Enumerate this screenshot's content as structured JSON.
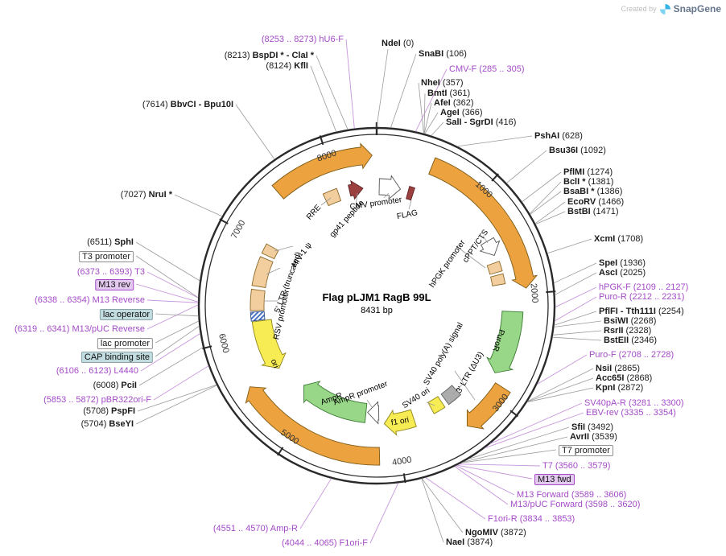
{
  "watermark": {
    "created_by": "Created by",
    "brand": "SnapGene"
  },
  "plasmid": {
    "name": "Flag pLJM1 RagB 99L",
    "length": "8431 bp"
  },
  "ticks": [
    "1000",
    "2000",
    "3000",
    "4000",
    "5000",
    "6000",
    "7000",
    "8000"
  ],
  "colors": {
    "backbone": "#2a2a2a",
    "primer_purple": "#A44BC8",
    "orange": "#ECA33F",
    "green": "#97D787",
    "yellow": "#F7EC54",
    "tan": "#F2CE9E",
    "gray_feature": "#ACACAC",
    "maroon": "#9C3F3F",
    "highlight_purple_bg": "#E3C8EF",
    "highlight_teal_bg": "#C2DCE0"
  },
  "labels": [
    {
      "id": "ndei",
      "kind": "enzyme",
      "parts": [
        {
          "t": "NdeI",
          "b": 1
        },
        {
          "t": " (0)"
        }
      ]
    },
    {
      "id": "snabi",
      "kind": "enzyme",
      "parts": [
        {
          "t": "SnaBI",
          "b": 1
        },
        {
          "t": " (106)"
        }
      ]
    },
    {
      "id": "cmvf",
      "kind": "primer",
      "parts": [
        {
          "t": "CMV-F (285 .. 305)"
        }
      ]
    },
    {
      "id": "nhei",
      "kind": "enzyme",
      "parts": [
        {
          "t": "NheI",
          "b": 1
        },
        {
          "t": " (357)"
        }
      ]
    },
    {
      "id": "bmti",
      "kind": "enzyme",
      "parts": [
        {
          "t": "BmtI",
          "b": 1
        },
        {
          "t": " (361)"
        }
      ]
    },
    {
      "id": "afei",
      "kind": "enzyme",
      "parts": [
        {
          "t": "AfeI",
          "b": 1
        },
        {
          "t": " (362)"
        }
      ]
    },
    {
      "id": "agei",
      "kind": "enzyme",
      "parts": [
        {
          "t": "AgeI",
          "b": 1
        },
        {
          "t": " (366)"
        }
      ]
    },
    {
      "id": "sali",
      "kind": "enzyme",
      "parts": [
        {
          "t": "SalI - SgrDI",
          "b": 1
        },
        {
          "t": " (416)"
        }
      ]
    },
    {
      "id": "pshai",
      "kind": "enzyme",
      "parts": [
        {
          "t": "PshAI",
          "b": 1
        },
        {
          "t": " (628)"
        }
      ]
    },
    {
      "id": "bsu36i",
      "kind": "enzyme",
      "parts": [
        {
          "t": "Bsu36I",
          "b": 1
        },
        {
          "t": " (1092)"
        }
      ]
    },
    {
      "id": "pflmi",
      "kind": "enzyme",
      "parts": [
        {
          "t": "PflMI",
          "b": 1
        },
        {
          "t": " (1274)"
        }
      ]
    },
    {
      "id": "bcli",
      "kind": "enzyme",
      "parts": [
        {
          "t": "BclI *",
          "b": 1
        },
        {
          "t": " (1381)"
        }
      ]
    },
    {
      "id": "bsabi",
      "kind": "enzyme",
      "parts": [
        {
          "t": "BsaBI *",
          "b": 1
        },
        {
          "t": " (1386)"
        }
      ]
    },
    {
      "id": "ecorv",
      "kind": "enzyme",
      "parts": [
        {
          "t": "EcoRV",
          "b": 1
        },
        {
          "t": " (1466)"
        }
      ]
    },
    {
      "id": "bstbi",
      "kind": "enzyme",
      "parts": [
        {
          "t": "BstBI",
          "b": 1
        },
        {
          "t": " (1471)"
        }
      ]
    },
    {
      "id": "xcmi",
      "kind": "enzyme",
      "parts": [
        {
          "t": "XcmI",
          "b": 1
        },
        {
          "t": " (1708)"
        }
      ]
    },
    {
      "id": "spei",
      "kind": "enzyme",
      "parts": [
        {
          "t": "SpeI",
          "b": 1
        },
        {
          "t": " (1936)"
        }
      ]
    },
    {
      "id": "asci",
      "kind": "enzyme",
      "parts": [
        {
          "t": "AscI",
          "b": 1
        },
        {
          "t": " (2025)"
        }
      ]
    },
    {
      "id": "hpgkf",
      "kind": "primer",
      "parts": [
        {
          "t": "hPGK-F (2109 .. 2127)"
        }
      ]
    },
    {
      "id": "purorp",
      "kind": "primer",
      "parts": [
        {
          "t": "Puro-R (2212 .. 2231)"
        }
      ]
    },
    {
      "id": "pflfi",
      "kind": "enzyme",
      "parts": [
        {
          "t": "PflFI - Tth111I",
          "b": 1
        },
        {
          "t": " (2254)"
        }
      ]
    },
    {
      "id": "bsiwi",
      "kind": "enzyme",
      "parts": [
        {
          "t": "BsiWI",
          "b": 1
        },
        {
          "t": " (2268)"
        }
      ]
    },
    {
      "id": "rsrii",
      "kind": "enzyme",
      "parts": [
        {
          "t": "RsrII",
          "b": 1
        },
        {
          "t": " (2328)"
        }
      ]
    },
    {
      "id": "bsteii",
      "kind": "enzyme",
      "parts": [
        {
          "t": "BstEII",
          "b": 1
        },
        {
          "t": " (2346)"
        }
      ]
    },
    {
      "id": "purof",
      "kind": "primer",
      "parts": [
        {
          "t": "Puro-F (2708 .. 2728)"
        }
      ]
    },
    {
      "id": "nsii",
      "kind": "enzyme",
      "parts": [
        {
          "t": "NsiI",
          "b": 1
        },
        {
          "t": " (2865)"
        }
      ]
    },
    {
      "id": "acc65i",
      "kind": "enzyme",
      "parts": [
        {
          "t": "Acc65I",
          "b": 1
        },
        {
          "t": " (2868)"
        }
      ]
    },
    {
      "id": "kpni",
      "kind": "enzyme",
      "parts": [
        {
          "t": "KpnI",
          "b": 1
        },
        {
          "t": " (2872)"
        }
      ]
    },
    {
      "id": "sv40par",
      "kind": "primer",
      "parts": [
        {
          "t": "SV40pA-R (3281 .. 3300)"
        }
      ]
    },
    {
      "id": "ebvrev",
      "kind": "primer",
      "parts": [
        {
          "t": "EBV-rev (3335 .. 3354)"
        }
      ]
    },
    {
      "id": "sfii",
      "kind": "enzyme",
      "parts": [
        {
          "t": "SfiI",
          "b": 1
        },
        {
          "t": " (3492)"
        }
      ]
    },
    {
      "id": "avrii",
      "kind": "enzyme",
      "parts": [
        {
          "t": "AvrII",
          "b": 1
        },
        {
          "t": " (3539)"
        }
      ]
    },
    {
      "id": "t7prom",
      "kind": "box",
      "parts": [
        {
          "t": "T7 promoter"
        }
      ]
    },
    {
      "id": "t7",
      "kind": "primer",
      "parts": [
        {
          "t": "T7 (3560 .. 3579)"
        }
      ]
    },
    {
      "id": "m13fwd",
      "kind": "hlp",
      "parts": [
        {
          "t": "M13 fwd"
        }
      ]
    },
    {
      "id": "m13forward",
      "kind": "primer",
      "parts": [
        {
          "t": "M13 Forward (3589 .. 3606)"
        }
      ]
    },
    {
      "id": "m13pucfwd",
      "kind": "primer",
      "parts": [
        {
          "t": "M13/pUC Forward (3598 .. 3620)"
        }
      ]
    },
    {
      "id": "f1orir",
      "kind": "primer",
      "parts": [
        {
          "t": "F1ori-R (3834 .. 3853)"
        }
      ]
    },
    {
      "id": "ngomiv",
      "kind": "enzyme",
      "parts": [
        {
          "t": "NgoMIV",
          "b": 1
        },
        {
          "t": " (3872)"
        }
      ]
    },
    {
      "id": "naei",
      "kind": "enzyme",
      "parts": [
        {
          "t": "NaeI",
          "b": 1
        },
        {
          "t": " (3874)"
        }
      ]
    },
    {
      "id": "f1orif",
      "kind": "primer",
      "parts": [
        {
          "t": "(4044 .. 4065) F1ori-F"
        }
      ]
    },
    {
      "id": "amprp",
      "kind": "primer",
      "parts": [
        {
          "t": "(4551 .. 4570) Amp-R"
        }
      ]
    },
    {
      "id": "pbr322",
      "kind": "primer",
      "parts": [
        {
          "t": "(5853 .. 5872) pBR322ori-F"
        }
      ]
    },
    {
      "id": "pspfi",
      "kind": "enzyme",
      "parts": [
        {
          "t": "(5708) "
        },
        {
          "t": "PspFI",
          "b": 1
        }
      ]
    },
    {
      "id": "bseyi",
      "kind": "enzyme",
      "parts": [
        {
          "t": "(5704) "
        },
        {
          "t": "BseYI",
          "b": 1
        }
      ]
    },
    {
      "id": "pcii",
      "kind": "enzyme",
      "parts": [
        {
          "t": "(6008) "
        },
        {
          "t": "PciI",
          "b": 1
        }
      ]
    },
    {
      "id": "l4440",
      "kind": "primer",
      "parts": [
        {
          "t": "(6106 .. 6123) L4440"
        }
      ]
    },
    {
      "id": "cap",
      "kind": "hlt",
      "parts": [
        {
          "t": "CAP binding site"
        }
      ]
    },
    {
      "id": "lacprom",
      "kind": "box",
      "parts": [
        {
          "t": "lac promoter"
        }
      ]
    },
    {
      "id": "m13pucrev",
      "kind": "primer",
      "parts": [
        {
          "t": "(6319 .. 6341) M13/pUC Reverse"
        }
      ]
    },
    {
      "id": "lacop",
      "kind": "hlt",
      "parts": [
        {
          "t": "lac operator"
        }
      ]
    },
    {
      "id": "m13reverse",
      "kind": "primer",
      "parts": [
        {
          "t": "(6338 .. 6354) M13 Reverse"
        }
      ]
    },
    {
      "id": "m13rev",
      "kind": "hlp",
      "parts": [
        {
          "t": "M13 rev"
        }
      ]
    },
    {
      "id": "t3",
      "kind": "primer",
      "parts": [
        {
          "t": "(6373 .. 6393) T3"
        }
      ]
    },
    {
      "id": "t3prom",
      "kind": "box",
      "parts": [
        {
          "t": "T3 promoter"
        }
      ]
    },
    {
      "id": "sphi",
      "kind": "enzyme",
      "parts": [
        {
          "t": "(6511) "
        },
        {
          "t": "SphI",
          "b": 1
        }
      ]
    },
    {
      "id": "nrui",
      "kind": "enzyme",
      "parts": [
        {
          "t": "(7027) "
        },
        {
          "t": "NruI *",
          "b": 1
        }
      ]
    },
    {
      "id": "bbvci",
      "kind": "enzyme",
      "parts": [
        {
          "t": "(7614) "
        },
        {
          "t": "BbvCI - Bpu10I",
          "b": 1
        }
      ]
    },
    {
      "id": "kfli",
      "kind": "enzyme",
      "parts": [
        {
          "t": "(8124) "
        },
        {
          "t": "KflI",
          "b": 1
        }
      ]
    },
    {
      "id": "bspdi",
      "kind": "enzyme",
      "parts": [
        {
          "t": "(8213) "
        },
        {
          "t": "BspDI * - ClaI *",
          "b": 1
        }
      ]
    },
    {
      "id": "hu6f",
      "kind": "primer",
      "parts": [
        {
          "t": "(8253 .. 8273) hU6-F"
        }
      ]
    }
  ],
  "features": [
    {
      "id": "rre",
      "label": "RRE",
      "color": "tan"
    },
    {
      "id": "gp41",
      "label": "gp41 peptide",
      "color": "maroon"
    },
    {
      "id": "cmv",
      "label": "CMV promoter",
      "color": "white"
    },
    {
      "id": "flag",
      "label": "FLAG",
      "color": "maroon"
    },
    {
      "id": "cppt",
      "label": "cPPT/CTS",
      "color": "white"
    },
    {
      "id": "hpgk",
      "label": "hPGK promoter",
      "color": "tan"
    },
    {
      "id": "puror",
      "label": "PuroR",
      "color": "green"
    },
    {
      "id": "sv40pa",
      "label": "SV40 poly(A) signal",
      "color": "orange"
    },
    {
      "id": "ltr3",
      "label": "3' LTR (ΔU3)",
      "color": "gray"
    },
    {
      "id": "sv40ori",
      "label": "SV40 ori",
      "color": "yellow"
    },
    {
      "id": "f1ori",
      "label": "f1 ori",
      "color": "yellow"
    },
    {
      "id": "amprprom",
      "label": "AmpR promoter",
      "color": "white"
    },
    {
      "id": "ampr",
      "label": "AmpR",
      "color": "green"
    },
    {
      "id": "ori",
      "label": "ori",
      "color": "yellow"
    },
    {
      "id": "rsv",
      "label": "RSV promoter",
      "color": "tan"
    },
    {
      "id": "ltr5",
      "label": "5' LTR (truncated)",
      "color": "tan"
    },
    {
      "id": "psi",
      "label": "HIV-1 ψ",
      "color": "tan"
    }
  ]
}
